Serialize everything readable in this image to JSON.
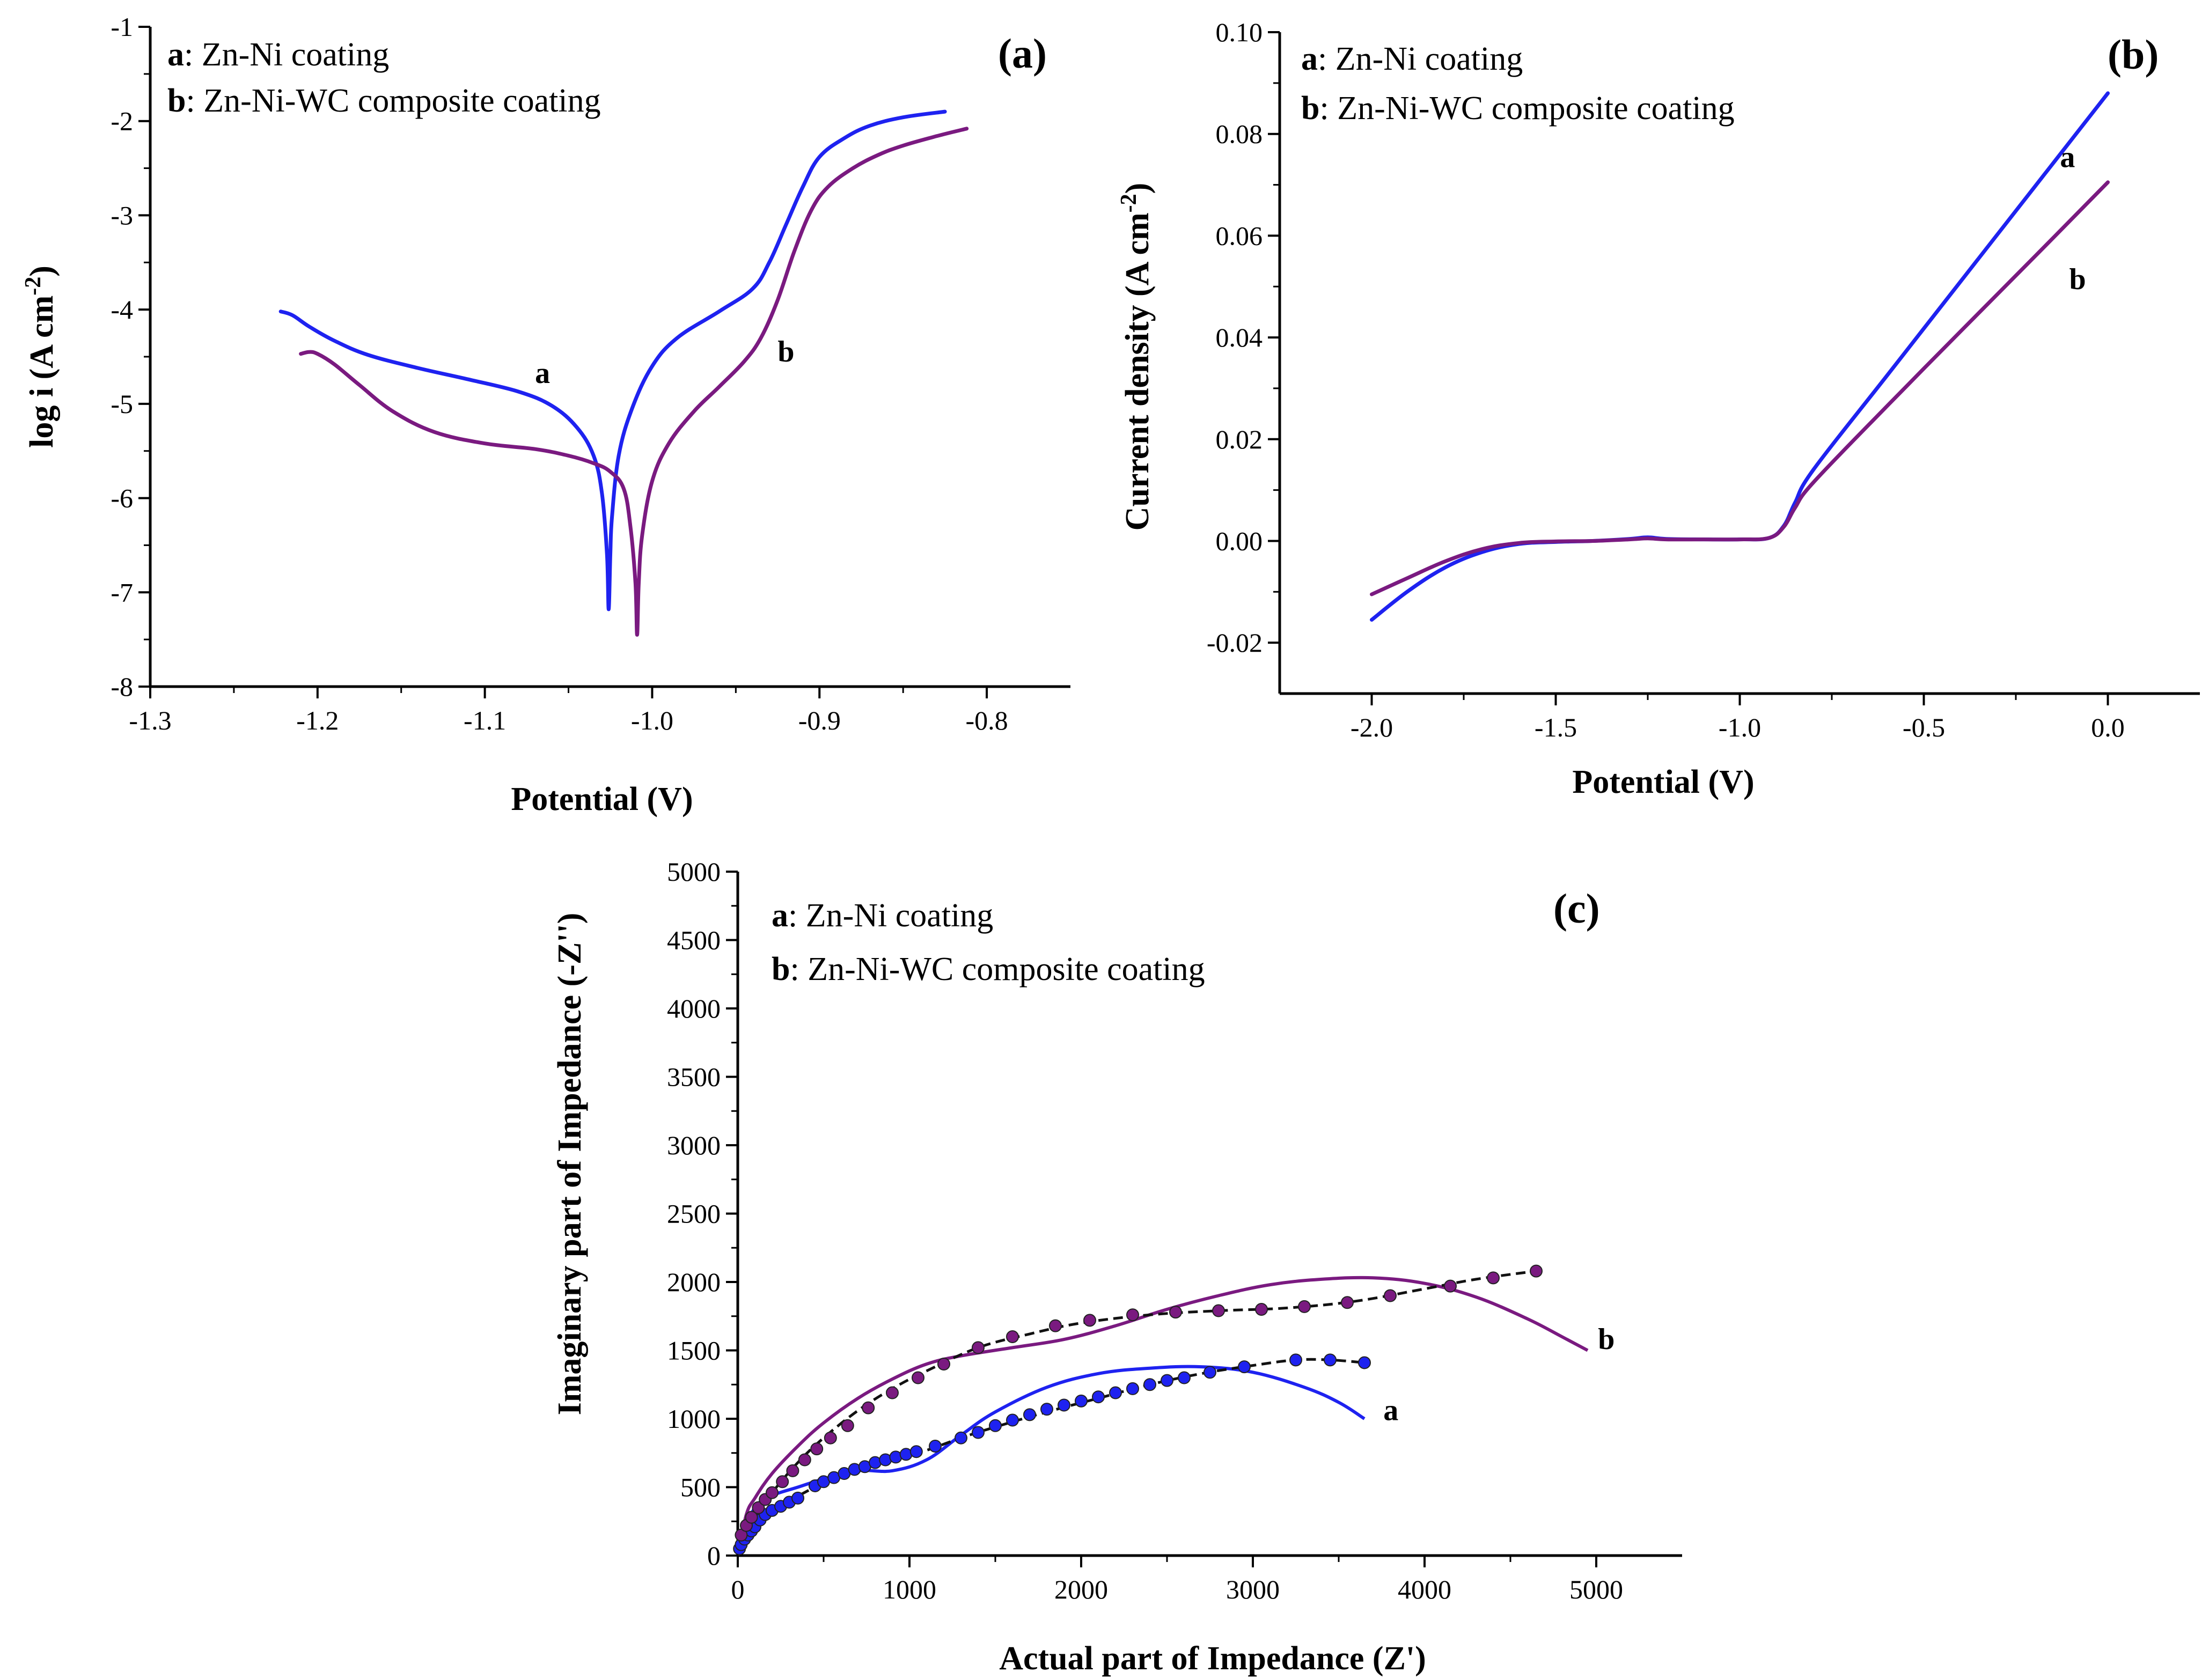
{
  "colors": {
    "a": "#1e22f0",
    "b": "#7a1a80",
    "fit": "#111111"
  },
  "chart_data": [
    {
      "panel": "(a)",
      "type": "line",
      "xlabel": "Potential (V)",
      "ylabel_main": "log i (A cm",
      "ylabel_sup": "-2",
      "ylabel_close": ")",
      "xlim": [
        -1.3,
        -0.75
      ],
      "ylim": [
        -8,
        -1
      ],
      "xticks": [
        -1.3,
        -1.2,
        -1.1,
        -1.0,
        -0.9,
        -0.8
      ],
      "xtick_labels": [
        "-1.3",
        "-1.2",
        "-1.1",
        "-1.0",
        "-0.9",
        "-0.8"
      ],
      "yticks": [
        -8,
        -7,
        -6,
        -5,
        -4,
        -3,
        -2,
        -1
      ],
      "ytick_labels": [
        "-8",
        "-7",
        "-6",
        "-5",
        "-4",
        "-3",
        "-2",
        "-1"
      ],
      "legend": [
        {
          "key": "a",
          "text": ": Zn-Ni coating"
        },
        {
          "key": "b",
          "text": ": Zn-Ni-WC composite coating"
        }
      ],
      "series": [
        {
          "name": "a",
          "label": "a",
          "label_at": [
            -1.07,
            -4.78
          ],
          "x": [
            -1.222,
            -1.215,
            -1.205,
            -1.19,
            -1.17,
            -1.14,
            -1.11,
            -1.08,
            -1.06,
            -1.045,
            -1.035,
            -1.03,
            -1.027,
            -1.026,
            -1.025,
            -1.024,
            -1.02,
            -1.012,
            -1.0,
            -0.985,
            -0.96,
            -0.94,
            -0.93,
            -0.92,
            -0.91,
            -0.9,
            -0.885,
            -0.87,
            -0.85,
            -0.825
          ],
          "y": [
            -4.02,
            -4.06,
            -4.18,
            -4.33,
            -4.48,
            -4.62,
            -4.74,
            -4.87,
            -5.02,
            -5.25,
            -5.55,
            -5.95,
            -6.6,
            -7.18,
            -6.6,
            -6.2,
            -5.55,
            -5.05,
            -4.6,
            -4.3,
            -4.02,
            -3.78,
            -3.5,
            -3.1,
            -2.7,
            -2.38,
            -2.18,
            -2.05,
            -1.96,
            -1.9
          ]
        },
        {
          "name": "b",
          "label": "b",
          "label_at": [
            -0.925,
            -4.55
          ],
          "x": [
            -1.21,
            -1.205,
            -1.2,
            -1.19,
            -1.175,
            -1.155,
            -1.13,
            -1.1,
            -1.07,
            -1.05,
            -1.035,
            -1.025,
            -1.017,
            -1.013,
            -1.01,
            -1.009,
            -1.008,
            -1.006,
            -1.0,
            -0.99,
            -0.975,
            -0.96,
            -0.945,
            -0.935,
            -0.925,
            -0.915,
            -0.905,
            -0.895,
            -0.88,
            -0.865,
            -0.85,
            -0.83,
            -0.812
          ],
          "y": [
            -4.47,
            -4.45,
            -4.47,
            -4.58,
            -4.8,
            -5.08,
            -5.3,
            -5.42,
            -5.48,
            -5.55,
            -5.63,
            -5.72,
            -5.9,
            -6.3,
            -6.9,
            -7.45,
            -6.9,
            -6.4,
            -5.82,
            -5.42,
            -5.08,
            -4.82,
            -4.55,
            -4.3,
            -3.9,
            -3.38,
            -2.95,
            -2.7,
            -2.5,
            -2.36,
            -2.26,
            -2.16,
            -2.08
          ]
        }
      ]
    },
    {
      "panel": "(b)",
      "type": "line",
      "xlabel": "Potential (V)",
      "ylabel_main": "Current density (A cm",
      "ylabel_sup": "-2",
      "ylabel_close": ")",
      "xlim": [
        -2.25,
        0.25
      ],
      "ylim": [
        -0.03,
        0.1
      ],
      "xticks": [
        -2.0,
        -1.5,
        -1.0,
        -0.5,
        0.0
      ],
      "xtick_labels": [
        "-2.0",
        "-1.5",
        "-1.0",
        "-0.5",
        "0.0"
      ],
      "yticks": [
        -0.02,
        0.0,
        0.02,
        0.04,
        0.06,
        0.08,
        0.1
      ],
      "ytick_labels": [
        "-0.02",
        "0.00",
        "0.02",
        "0.04",
        "0.06",
        "0.08",
        "0.10"
      ],
      "legend": [
        {
          "key": "a",
          "text": ": Zn-Ni coating"
        },
        {
          "key": "b",
          "text": ": Zn-Ni-WC composite coating"
        }
      ],
      "series": [
        {
          "name": "a",
          "label": "a",
          "label_at": [
            -0.13,
            0.0735
          ],
          "x": [
            -2.0,
            -1.9,
            -1.8,
            -1.7,
            -1.6,
            -1.5,
            -1.4,
            -1.3,
            -1.25,
            -1.2,
            -1.1,
            -1.0,
            -0.92,
            -0.88,
            -0.85,
            -0.8,
            -0.6,
            -0.4,
            -0.2,
            0.0
          ],
          "y": [
            -0.0155,
            -0.0098,
            -0.0052,
            -0.0022,
            -0.0006,
            -0.0002,
            0.0,
            0.0004,
            0.0007,
            0.0004,
            0.0003,
            0.0003,
            0.0006,
            0.003,
            0.0075,
            0.014,
            0.0325,
            0.051,
            0.0695,
            0.088
          ]
        },
        {
          "name": "b",
          "label": "b",
          "label_at": [
            -0.105,
            0.0495
          ],
          "x": [
            -2.0,
            -1.9,
            -1.8,
            -1.7,
            -1.6,
            -1.5,
            -1.4,
            -1.3,
            -1.25,
            -1.2,
            -1.1,
            -1.0,
            -0.92,
            -0.88,
            -0.85,
            -0.8,
            -0.6,
            -0.4,
            -0.2,
            0.0
          ],
          "y": [
            -0.0105,
            -0.0072,
            -0.004,
            -0.0016,
            -0.0004,
            -0.0001,
            0.0,
            0.0003,
            0.0005,
            0.0003,
            0.0003,
            0.0003,
            0.0006,
            0.0028,
            0.0065,
            0.0115,
            0.0265,
            0.0412,
            0.0558,
            0.0705
          ]
        }
      ]
    },
    {
      "panel": "(c)",
      "type": "scatter",
      "xlabel": "Actual part of Impedance (Z')",
      "ylabel": "Imaginary part of Impedance (-Z'')",
      "xlim": [
        0,
        5500
      ],
      "ylim": [
        0,
        5000
      ],
      "xticks": [
        0,
        1000,
        2000,
        3000,
        4000,
        5000
      ],
      "xtick_labels": [
        "0",
        "1000",
        "2000",
        "3000",
        "4000",
        "5000"
      ],
      "yticks": [
        0,
        500,
        1000,
        1500,
        2000,
        2500,
        3000,
        3500,
        4000,
        4500,
        5000
      ],
      "ytick_labels": [
        "0",
        "500",
        "1000",
        "1500",
        "2000",
        "2500",
        "3000",
        "3500",
        "4000",
        "4500",
        "5000"
      ],
      "legend": [
        {
          "key": "a",
          "text": ": Zn-Ni coating"
        },
        {
          "key": "b",
          "text": ": Zn-Ni-WC composite coating"
        }
      ],
      "series": [
        {
          "name": "a",
          "label": "a",
          "label_at": [
            3760,
            990
          ],
          "curve_x": [
            0,
            60,
            120,
            200,
            350,
            500,
            700,
            900,
            1100,
            1300,
            1500,
            1800,
            2100,
            2400,
            2700,
            3000,
            3300,
            3500,
            3650
          ],
          "curve_y": [
            0,
            250,
            380,
            440,
            500,
            560,
            620,
            620,
            700,
            880,
            1050,
            1230,
            1330,
            1370,
            1380,
            1340,
            1230,
            1120,
            1000
          ],
          "points_x": [
            10,
            20,
            40,
            60,
            80,
            100,
            130,
            160,
            200,
            250,
            300,
            350,
            450,
            500,
            560,
            620,
            680,
            740,
            800,
            860,
            920,
            980,
            1040,
            1150,
            1300,
            1400,
            1500,
            1600,
            1700,
            1800,
            1900,
            2000,
            2100,
            2200,
            2300,
            2400,
            2500,
            2600,
            2750,
            2950,
            3250,
            3450,
            3650
          ],
          "points_y": [
            50,
            80,
            120,
            150,
            180,
            210,
            260,
            300,
            330,
            360,
            390,
            420,
            510,
            540,
            570,
            600,
            630,
            650,
            680,
            700,
            720,
            740,
            760,
            800,
            860,
            900,
            950,
            990,
            1030,
            1070,
            1100,
            1130,
            1160,
            1190,
            1220,
            1250,
            1280,
            1300,
            1340,
            1380,
            1430,
            1430,
            1410
          ],
          "fit_x": [
            0,
            100,
            200,
            300,
            500,
            700,
            900,
            1100,
            1300,
            1500,
            1800,
            2100,
            2400,
            2700,
            3000,
            3250,
            3450,
            3650
          ],
          "fit_y": [
            0,
            230,
            330,
            400,
            530,
            620,
            700,
            770,
            860,
            940,
            1050,
            1150,
            1250,
            1330,
            1390,
            1430,
            1430,
            1410
          ]
        },
        {
          "name": "b",
          "label": "b",
          "label_at": [
            5010,
            1510
          ],
          "curve_x": [
            0,
            50,
            100,
            200,
            350,
            500,
            700,
            900,
            1100,
            1300,
            1600,
            1900,
            2200,
            2500,
            2800,
            3100,
            3400,
            3700,
            4000,
            4300,
            4600,
            4800,
            4950
          ],
          "curve_y": [
            0,
            300,
            420,
            600,
            800,
            970,
            1150,
            1290,
            1400,
            1460,
            1520,
            1580,
            1680,
            1800,
            1900,
            1980,
            2020,
            2030,
            1990,
            1890,
            1730,
            1600,
            1500
          ],
          "points_x": [
            20,
            50,
            80,
            120,
            160,
            200,
            260,
            320,
            390,
            460,
            540,
            640,
            760,
            900,
            1050,
            1200,
            1400,
            1600,
            1850,
            2050,
            2300,
            2550,
            2800,
            3050,
            3300,
            3550,
            3800,
            4150,
            4400,
            4650
          ],
          "points_y": [
            150,
            220,
            280,
            350,
            410,
            460,
            540,
            620,
            700,
            780,
            860,
            950,
            1080,
            1190,
            1300,
            1400,
            1520,
            1600,
            1680,
            1720,
            1760,
            1780,
            1790,
            1800,
            1820,
            1850,
            1900,
            1970,
            2030,
            2080
          ],
          "fit_x": [
            0,
            100,
            200,
            350,
            500,
            700,
            900,
            1100,
            1400,
            1700,
            2000,
            2400,
            2800,
            3200,
            3600,
            4000,
            4300,
            4650
          ],
          "fit_y": [
            0,
            280,
            460,
            680,
            860,
            1060,
            1220,
            1350,
            1520,
            1620,
            1700,
            1760,
            1790,
            1810,
            1860,
            1950,
            2020,
            2080
          ]
        }
      ]
    }
  ]
}
